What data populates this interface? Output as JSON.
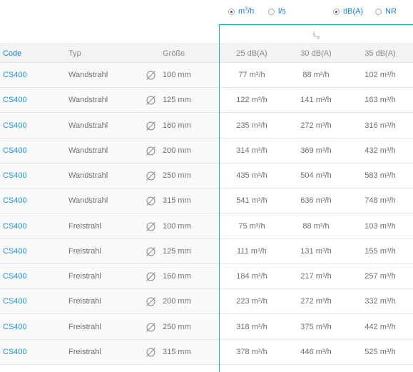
{
  "units": {
    "options": [
      {
        "label": "m³/h",
        "selected": true
      },
      {
        "label": "l/s",
        "selected": false
      }
    ]
  },
  "level": {
    "options": [
      {
        "label": "dB(A)",
        "selected": true
      },
      {
        "label": "NR",
        "selected": false
      }
    ]
  },
  "lw_label": "L",
  "lw_sub": "w",
  "headers": {
    "code": "Code",
    "typ": "Typ",
    "groesse": "Größe",
    "v0": "25 dB(A)",
    "v1": "30 dB(A)",
    "v2": "35 dB(A)"
  },
  "rows": [
    {
      "code": "CS400",
      "typ": "Wandstrahl",
      "size": "100 mm",
      "v": [
        "77",
        "88",
        "102"
      ]
    },
    {
      "code": "CS400",
      "typ": "Wandstrahl",
      "size": "125 mm",
      "v": [
        "122",
        "141",
        "163"
      ]
    },
    {
      "code": "CS400",
      "typ": "Wandstrahl",
      "size": "160 mm",
      "v": [
        "235",
        "272",
        "316"
      ]
    },
    {
      "code": "CS400",
      "typ": "Wandstrahl",
      "size": "200 mm",
      "v": [
        "314",
        "369",
        "432"
      ]
    },
    {
      "code": "CS400",
      "typ": "Wandstrahl",
      "size": "250 mm",
      "v": [
        "435",
        "504",
        "583"
      ]
    },
    {
      "code": "CS400",
      "typ": "Wandstrahl",
      "size": "315 mm",
      "v": [
        "541",
        "636",
        "748"
      ]
    },
    {
      "code": "CS400",
      "typ": "Freistrahl",
      "size": "100 mm",
      "v": [
        "75",
        "88",
        "103"
      ]
    },
    {
      "code": "CS400",
      "typ": "Freistrahl",
      "size": "125 mm",
      "v": [
        "111",
        "131",
        "155"
      ]
    },
    {
      "code": "CS400",
      "typ": "Freistrahl",
      "size": "160 mm",
      "v": [
        "184",
        "217",
        "257"
      ]
    },
    {
      "code": "CS400",
      "typ": "Freistrahl",
      "size": "200 mm",
      "v": [
        "223",
        "272",
        "332"
      ]
    },
    {
      "code": "CS400",
      "typ": "Freistrahl",
      "size": "250 mm",
      "v": [
        "318",
        "375",
        "442"
      ]
    },
    {
      "code": "CS400",
      "typ": "Freistrahl",
      "size": "315 mm",
      "v": [
        "378",
        "446",
        "525"
      ]
    }
  ],
  "value_unit": "m³/h",
  "colors": {
    "accent": "#2fa6d4",
    "link": "#1a96d0",
    "text": "#707070"
  }
}
